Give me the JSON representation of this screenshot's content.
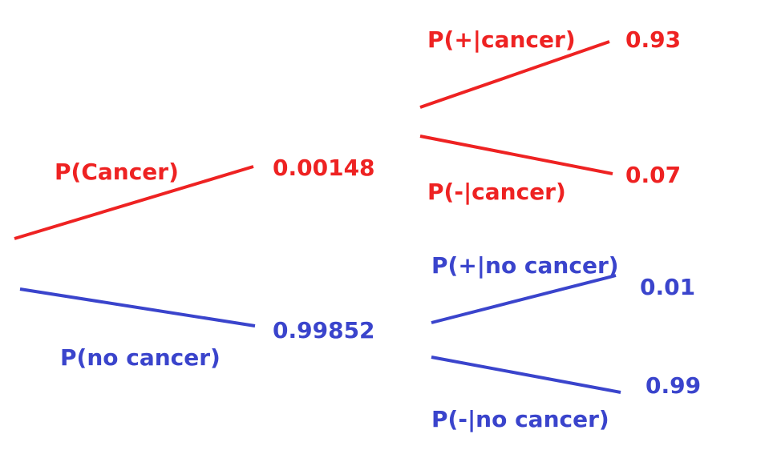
{
  "colors": {
    "cancer": "#ee2222",
    "no_cancer": "#3a44cc"
  },
  "root": {
    "cancer": {
      "label": "P(Cancer)",
      "value": "0.00148"
    },
    "no_cancer": {
      "label": "P(no cancer)",
      "value": "0.99852"
    }
  },
  "given_cancer": {
    "positive": {
      "label": "P(+|cancer)",
      "value": "0.93"
    },
    "negative": {
      "label": "P(-|cancer)",
      "value": "0.07"
    }
  },
  "given_no_cancer": {
    "positive": {
      "label": "P(+|no cancer)",
      "value": "0.01"
    },
    "negative": {
      "label": "P(-|no cancer)",
      "value": "0.99"
    }
  }
}
